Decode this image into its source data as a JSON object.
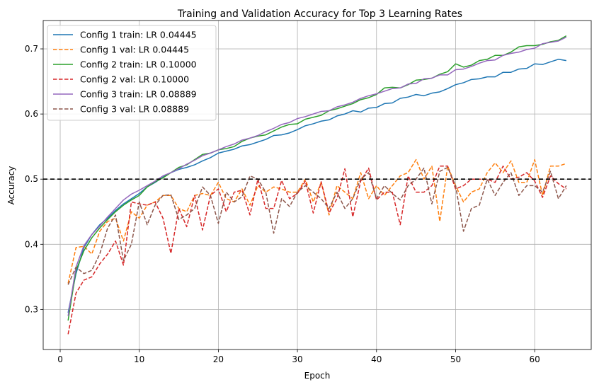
{
  "chart_data": {
    "type": "line",
    "title": "Training and Validation Accuracy for Top 3 Learning Rates",
    "xlabel": "Epoch",
    "ylabel": "Accuracy",
    "xlim": [
      -2.15,
      67.15
    ],
    "ylim": [
      0.2385,
      0.7435
    ],
    "xticks": [
      0,
      10,
      20,
      30,
      40,
      50,
      60
    ],
    "yticks": [
      0.3,
      0.4,
      0.5,
      0.6,
      0.7
    ],
    "xtick_labels": [
      "0",
      "10",
      "20",
      "30",
      "40",
      "50",
      "60"
    ],
    "ytick_labels": [
      "0.3",
      "0.4",
      "0.5",
      "0.6",
      "0.7"
    ],
    "grid": true,
    "legend_position": "upper-left",
    "reference_line": {
      "y": 0.5,
      "style": "dashed",
      "color": "#000000"
    },
    "x": [
      1,
      2,
      3,
      4,
      5,
      6,
      7,
      8,
      9,
      10,
      11,
      12,
      13,
      14,
      15,
      16,
      17,
      18,
      19,
      20,
      21,
      22,
      23,
      24,
      25,
      26,
      27,
      28,
      29,
      30,
      31,
      32,
      33,
      34,
      35,
      36,
      37,
      38,
      39,
      40,
      41,
      42,
      43,
      44,
      45,
      46,
      47,
      48,
      49,
      50,
      51,
      52,
      53,
      54,
      55,
      56,
      57,
      58,
      59,
      60,
      61,
      62,
      63,
      64
    ],
    "series": [
      {
        "name": "Config 1 train: LR 0.04445",
        "color": "#1f77b4",
        "dash": "solid",
        "values": [
          0.295,
          0.355,
          0.395,
          0.415,
          0.43,
          0.44,
          0.452,
          0.462,
          0.47,
          0.478,
          0.488,
          0.495,
          0.503,
          0.51,
          0.515,
          0.518,
          0.522,
          0.528,
          0.533,
          0.54,
          0.543,
          0.546,
          0.551,
          0.553,
          0.557,
          0.561,
          0.567,
          0.568,
          0.571,
          0.576,
          0.582,
          0.585,
          0.589,
          0.591,
          0.597,
          0.6,
          0.605,
          0.603,
          0.609,
          0.61,
          0.616,
          0.617,
          0.624,
          0.626,
          0.63,
          0.628,
          0.632,
          0.634,
          0.639,
          0.645,
          0.648,
          0.653,
          0.654,
          0.657,
          0.657,
          0.664,
          0.664,
          0.669,
          0.67,
          0.677,
          0.676,
          0.68,
          0.684,
          0.682
        ]
      },
      {
        "name": "Config 1 val: LR 0.04445",
        "color": "#ff7f0e",
        "dash": "dashed",
        "values": [
          0.34,
          0.395,
          0.397,
          0.385,
          0.42,
          0.435,
          0.44,
          0.405,
          0.45,
          0.44,
          0.46,
          0.465,
          0.475,
          0.475,
          0.455,
          0.45,
          0.475,
          0.478,
          0.475,
          0.495,
          0.47,
          0.465,
          0.485,
          0.46,
          0.49,
          0.48,
          0.488,
          0.485,
          0.48,
          0.48,
          0.5,
          0.465,
          0.495,
          0.445,
          0.49,
          0.48,
          0.47,
          0.51,
          0.47,
          0.49,
          0.475,
          0.49,
          0.505,
          0.51,
          0.53,
          0.5,
          0.52,
          0.435,
          0.52,
          0.49,
          0.465,
          0.48,
          0.485,
          0.51,
          0.525,
          0.51,
          0.528,
          0.495,
          0.495,
          0.53,
          0.475,
          0.52,
          0.52,
          0.524
        ]
      },
      {
        "name": "Config 2 train: LR 0.10000",
        "color": "#2ca02c",
        "dash": "solid",
        "values": [
          0.283,
          0.36,
          0.39,
          0.41,
          0.425,
          0.438,
          0.45,
          0.46,
          0.468,
          0.475,
          0.488,
          0.496,
          0.502,
          0.51,
          0.518,
          0.522,
          0.53,
          0.538,
          0.54,
          0.545,
          0.547,
          0.55,
          0.558,
          0.563,
          0.566,
          0.568,
          0.574,
          0.58,
          0.584,
          0.585,
          0.592,
          0.595,
          0.598,
          0.605,
          0.608,
          0.612,
          0.616,
          0.622,
          0.625,
          0.63,
          0.64,
          0.641,
          0.64,
          0.645,
          0.652,
          0.653,
          0.655,
          0.661,
          0.665,
          0.677,
          0.672,
          0.675,
          0.682,
          0.684,
          0.69,
          0.69,
          0.695,
          0.703,
          0.705,
          0.705,
          0.707,
          0.711,
          0.713,
          0.72
        ]
      },
      {
        "name": "Config 2 val: LR 0.10000",
        "color": "#d62728",
        "dash": "dashed",
        "values": [
          0.262,
          0.325,
          0.345,
          0.35,
          0.37,
          0.385,
          0.405,
          0.368,
          0.465,
          0.462,
          0.46,
          0.465,
          0.44,
          0.386,
          0.455,
          0.427,
          0.475,
          0.422,
          0.475,
          0.485,
          0.45,
          0.48,
          0.483,
          0.445,
          0.5,
          0.455,
          0.455,
          0.498,
          0.47,
          0.478,
          0.497,
          0.448,
          0.496,
          0.448,
          0.47,
          0.516,
          0.442,
          0.497,
          0.517,
          0.468,
          0.48,
          0.48,
          0.43,
          0.505,
          0.48,
          0.48,
          0.49,
          0.52,
          0.52,
          0.485,
          0.49,
          0.5,
          0.5,
          0.5,
          0.495,
          0.52,
          0.5,
          0.503,
          0.51,
          0.497,
          0.472,
          0.505,
          0.493,
          0.485
        ]
      },
      {
        "name": "Config 3 train: LR 0.08889",
        "color": "#9467bd",
        "dash": "solid",
        "values": [
          0.29,
          0.365,
          0.398,
          0.415,
          0.428,
          0.442,
          0.455,
          0.468,
          0.477,
          0.483,
          0.49,
          0.497,
          0.505,
          0.51,
          0.516,
          0.523,
          0.529,
          0.536,
          0.54,
          0.545,
          0.55,
          0.554,
          0.56,
          0.563,
          0.567,
          0.573,
          0.578,
          0.584,
          0.587,
          0.593,
          0.596,
          0.6,
          0.604,
          0.605,
          0.611,
          0.614,
          0.618,
          0.624,
          0.628,
          0.631,
          0.635,
          0.639,
          0.64,
          0.646,
          0.647,
          0.654,
          0.655,
          0.66,
          0.66,
          0.668,
          0.669,
          0.673,
          0.678,
          0.682,
          0.683,
          0.69,
          0.693,
          0.695,
          0.699,
          0.701,
          0.708,
          0.71,
          0.712,
          0.718
        ]
      },
      {
        "name": "Config 3 val: LR 0.08889",
        "color": "#8c564b",
        "dash": "dashed",
        "values": [
          0.338,
          0.365,
          0.355,
          0.36,
          0.385,
          0.425,
          0.445,
          0.375,
          0.4,
          0.465,
          0.43,
          0.46,
          0.475,
          0.476,
          0.438,
          0.445,
          0.455,
          0.488,
          0.475,
          0.432,
          0.48,
          0.465,
          0.473,
          0.505,
          0.5,
          0.48,
          0.417,
          0.47,
          0.458,
          0.48,
          0.49,
          0.48,
          0.47,
          0.455,
          0.48,
          0.455,
          0.47,
          0.5,
          0.51,
          0.47,
          0.49,
          0.478,
          0.468,
          0.49,
          0.5,
          0.517,
          0.462,
          0.512,
          0.518,
          0.49,
          0.42,
          0.455,
          0.46,
          0.5,
          0.475,
          0.495,
          0.51,
          0.475,
          0.49,
          0.49,
          0.48,
          0.512,
          0.47,
          0.49
        ]
      }
    ]
  }
}
